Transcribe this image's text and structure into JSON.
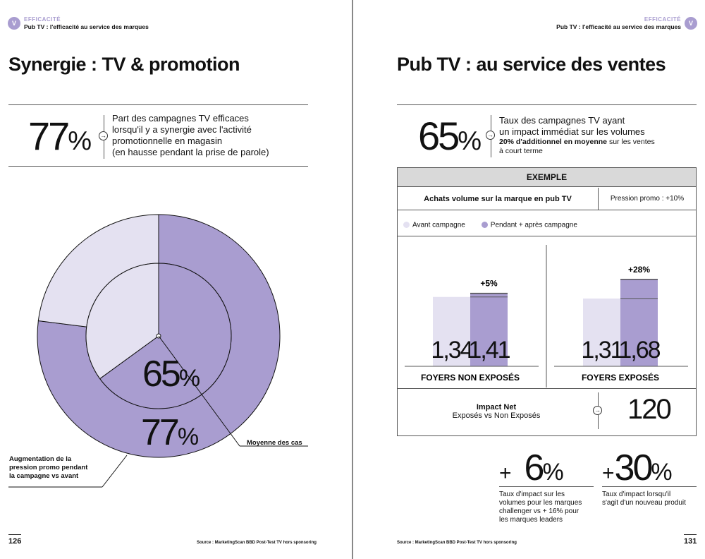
{
  "left_page": {
    "badge": "V",
    "kicker": "EFFICACITÉ",
    "running_head": "Pub TV : l'efficacité au service des marques",
    "title": "Synergie : TV & promotion",
    "stat": {
      "value": "77",
      "unit": "%",
      "lines": [
        "Part des campagnes TV efficaces",
        "lorsqu'il y a synergie avec l'activité",
        "promotionnelle en magasin",
        "(en hausse pendant la prise de parole)"
      ]
    },
    "donut": {
      "inner_value": "65",
      "outer_value": "77",
      "unit": "%",
      "inner_label": "Moyenne des cas",
      "outer_label_lines": [
        "Augmentation de la",
        "pression promo pendant",
        "la campagne vs avant"
      ]
    },
    "page_number": "126",
    "source": "Source : MarketingScan BBD Post-Test TV hors sponsoring"
  },
  "right_page": {
    "badge": "V",
    "kicker": "EFFICACITÉ",
    "running_head": "Pub TV : l'efficacité au service des marques",
    "title": "Pub TV : au service des ventes",
    "stat": {
      "value": "65",
      "unit": "%",
      "line1": "Taux des campagnes TV ayant",
      "line2": "un impact immédiat sur les volumes",
      "line3_bold": "20% d'additionnel en moyenne",
      "line3_rest": " sur les ventes",
      "line4": "à court terme"
    },
    "example": {
      "header": "EXEMPLE",
      "subtitle": "Achats volume sur la marque en pub TV",
      "pression": "Pression promo : +10%",
      "legend_before": "Avant campagne",
      "legend_after": "Pendant + après campagne",
      "impact_label": "Impact Net",
      "impact_sub": "Exposés vs Non Exposés",
      "impact_value": "120"
    },
    "impacts": [
      {
        "sign": "+",
        "value": "6",
        "unit": "%",
        "desc_lines": [
          "Taux d'impact sur les",
          "volumes pour les marques",
          "challenger vs + 16% pour",
          "les marques leaders"
        ]
      },
      {
        "sign": "+",
        "value": "30",
        "unit": "%",
        "desc_lines": [
          "Taux d'impact lorsqu'il",
          "s'agit d'un nouveau produit"
        ]
      }
    ],
    "page_number": "131",
    "source": "Source : MarketingScan BBD Post-Test TV hors sponsoring"
  },
  "colors": {
    "accent": "#a99dd0",
    "light": "#e4e1f1",
    "ink": "#111111"
  },
  "chart_data": {
    "type": "bar",
    "categories": [
      "FOYERS NON EXPOSÉS",
      "FOYERS EXPOSÉS"
    ],
    "series": [
      {
        "name": "Avant campagne",
        "values": [
          1.34,
          1.31
        ],
        "labels": [
          "1,34",
          "1,31"
        ]
      },
      {
        "name": "Pendant + après campagne",
        "values": [
          1.41,
          1.68
        ],
        "labels": [
          "1,41",
          "1,68"
        ]
      }
    ],
    "changes": [
      "+5%",
      "+28%"
    ],
    "ylim": [
      0,
      1.8
    ]
  },
  "donut_data": {
    "inner_fraction": 0.65,
    "outer_fraction": 0.77
  }
}
